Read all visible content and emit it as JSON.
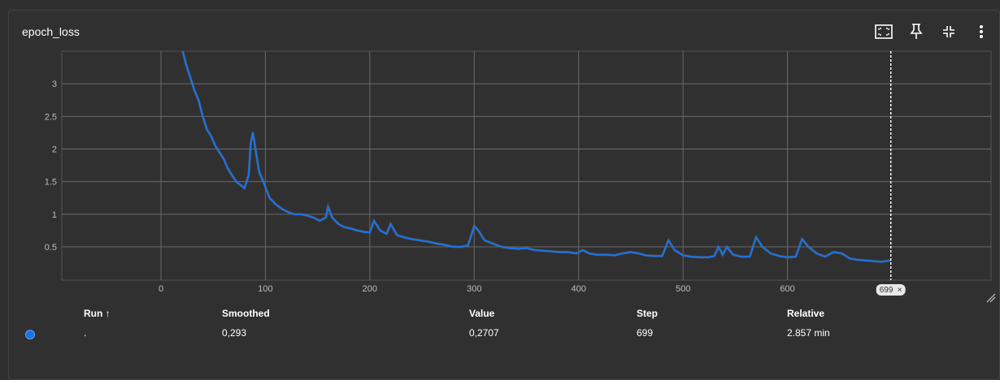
{
  "card": {
    "title": "epoch_loss"
  },
  "toolbar": {
    "icons": [
      "fit-domain-icon",
      "pin-icon",
      "collapse-icon",
      "more-vert-icon"
    ]
  },
  "chart_data": {
    "type": "line",
    "title": "epoch_loss",
    "xlabel": "",
    "ylabel": "",
    "xlim": [
      -95,
      795
    ],
    "ylim": [
      -0.01,
      3.5
    ],
    "x_ticks": [
      "0",
      "100",
      "200",
      "300",
      "400",
      "500",
      "600"
    ],
    "y_ticks": [
      "0.5",
      "1",
      "1.5",
      "2",
      "2.5",
      "3"
    ],
    "grid": true,
    "cursor_step_label": "699",
    "colors": {
      "line": "#1a73e8",
      "raw": "#5a6b7d",
      "grid": "#6a6a6a",
      "axis": "#bdbdbd"
    },
    "series": [
      {
        "x": [
          20,
          24,
          28,
          32,
          36,
          40,
          44,
          48,
          52,
          56,
          60,
          64,
          68,
          72,
          76,
          80,
          84,
          86,
          88,
          90,
          94,
          98,
          104,
          110,
          116,
          122,
          128,
          134,
          140,
          146,
          152,
          158,
          160,
          164,
          170,
          176,
          182,
          188,
          194,
          200,
          204,
          210,
          216,
          220,
          226,
          232,
          240,
          248,
          256,
          264,
          272,
          280,
          288,
          294,
          300,
          304,
          310,
          318,
          326,
          334,
          342,
          350,
          358,
          366,
          374,
          382,
          390,
          398,
          404,
          410,
          418,
          426,
          434,
          442,
          450,
          458,
          464,
          472,
          480,
          486,
          492,
          500,
          508,
          516,
          524,
          530,
          534,
          538,
          542,
          548,
          556,
          564,
          570,
          576,
          584,
          592,
          600,
          608,
          614,
          620,
          628,
          636,
          644,
          652,
          660,
          668,
          676,
          684,
          690,
          694,
          699
        ],
        "values": [
          3.55,
          3.3,
          3.1,
          2.9,
          2.75,
          2.5,
          2.3,
          2.2,
          2.05,
          1.95,
          1.85,
          1.7,
          1.6,
          1.5,
          1.45,
          1.4,
          1.6,
          2.1,
          2.25,
          2.05,
          1.65,
          1.5,
          1.25,
          1.15,
          1.08,
          1.03,
          1.0,
          1.0,
          0.98,
          0.95,
          0.9,
          0.95,
          1.12,
          0.95,
          0.85,
          0.8,
          0.78,
          0.75,
          0.73,
          0.72,
          0.9,
          0.75,
          0.7,
          0.85,
          0.68,
          0.65,
          0.62,
          0.6,
          0.58,
          0.55,
          0.53,
          0.5,
          0.5,
          0.52,
          0.82,
          0.75,
          0.6,
          0.55,
          0.5,
          0.48,
          0.47,
          0.48,
          0.45,
          0.44,
          0.43,
          0.42,
          0.42,
          0.4,
          0.45,
          0.4,
          0.38,
          0.38,
          0.37,
          0.4,
          0.42,
          0.4,
          0.37,
          0.36,
          0.36,
          0.6,
          0.45,
          0.37,
          0.35,
          0.34,
          0.34,
          0.36,
          0.5,
          0.38,
          0.5,
          0.38,
          0.35,
          0.35,
          0.65,
          0.5,
          0.4,
          0.36,
          0.34,
          0.35,
          0.62,
          0.5,
          0.4,
          0.35,
          0.42,
          0.4,
          0.32,
          0.3,
          0.29,
          0.28,
          0.27,
          0.28,
          0.293
        ]
      }
    ]
  },
  "table": {
    "headers": {
      "run": "Run ↑",
      "smoothed": "Smoothed",
      "value": "Value",
      "step": "Step",
      "relative": "Relative"
    },
    "rows": [
      {
        "run": ".",
        "smoothed": "0,293",
        "value": "0,2707",
        "step": "699",
        "relative": "2.857 min",
        "color": "#1a73e8"
      }
    ]
  }
}
